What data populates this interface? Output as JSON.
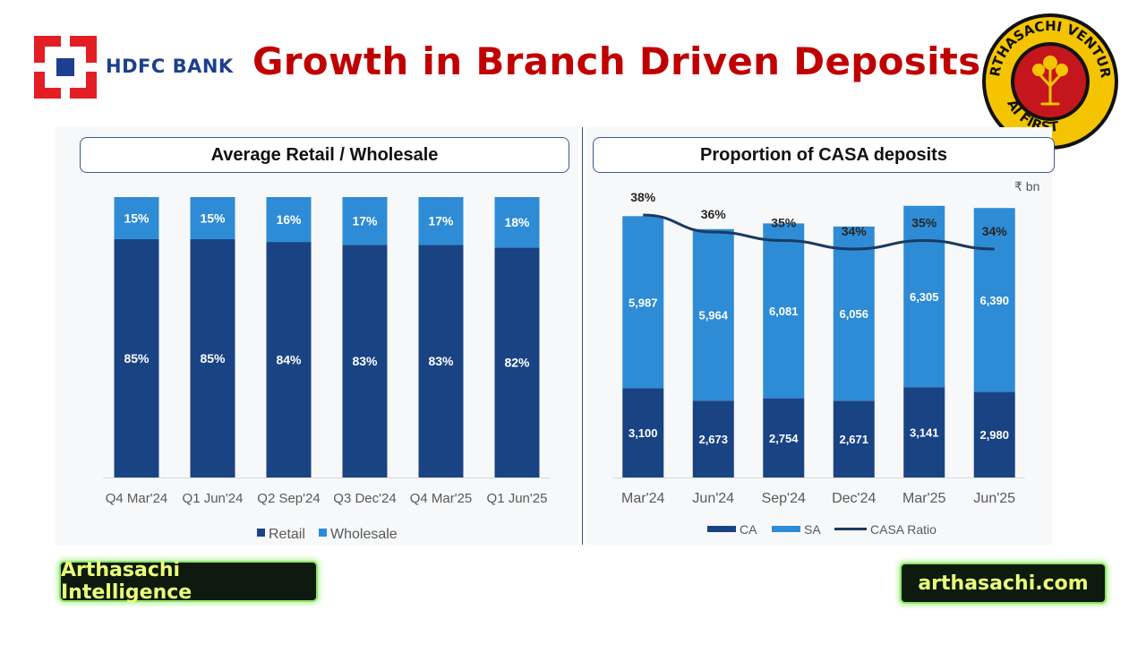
{
  "logo": {
    "text": "HDFC BANK",
    "colors": {
      "red": "#e31e24",
      "blue": "#1c3f8f"
    }
  },
  "title": "Growth in Branch Driven Deposits",
  "seal": {
    "top_text": "ARTHASACHI VENTURE",
    "bottom_text": "AI FIRST",
    "icon": "tree-icon"
  },
  "badges": {
    "left": "Arthasachi Intelligence",
    "right": "arthasachi.com"
  },
  "chart_data": [
    {
      "type": "bar",
      "stacked": true,
      "title": "Average Retail / Wholesale",
      "categories": [
        "Q4 Mar'24",
        "Q1 Jun'24",
        "Q2 Sep'24",
        "Q3 Dec'24",
        "Q4 Mar'25",
        "Q1 Jun'25"
      ],
      "series": [
        {
          "name": "Retail",
          "values": [
            85,
            85,
            84,
            83,
            83,
            82
          ],
          "color": "#1a4384"
        },
        {
          "name": "Wholesale",
          "values": [
            15,
            15,
            16,
            17,
            17,
            18
          ],
          "color": "#2e8bd6"
        }
      ],
      "unit": "%",
      "ylim": [
        0,
        100
      ],
      "legend": "bottom",
      "grid": false
    },
    {
      "type": "bar",
      "stacked": true,
      "title": "Proportion of CASA deposits",
      "unit_label": "₹ bn",
      "categories": [
        "Mar'24",
        "Jun'24",
        "Sep'24",
        "Dec'24",
        "Mar'25",
        "Jun'25"
      ],
      "series": [
        {
          "name": "CA",
          "values": [
            3100,
            2673,
            2754,
            2671,
            3141,
            2980
          ],
          "color": "#1a4384"
        },
        {
          "name": "SA",
          "values": [
            5987,
            5964,
            6081,
            6056,
            6305,
            6390
          ],
          "color": "#2e8bd6"
        }
      ],
      "line_series": {
        "name": "CASA Ratio",
        "values": [
          38,
          36,
          35,
          34,
          35,
          34
        ],
        "unit": "%",
        "color": "#1b3a60"
      },
      "ylim": [
        0,
        9500
      ],
      "legend": "bottom",
      "grid": false
    }
  ]
}
